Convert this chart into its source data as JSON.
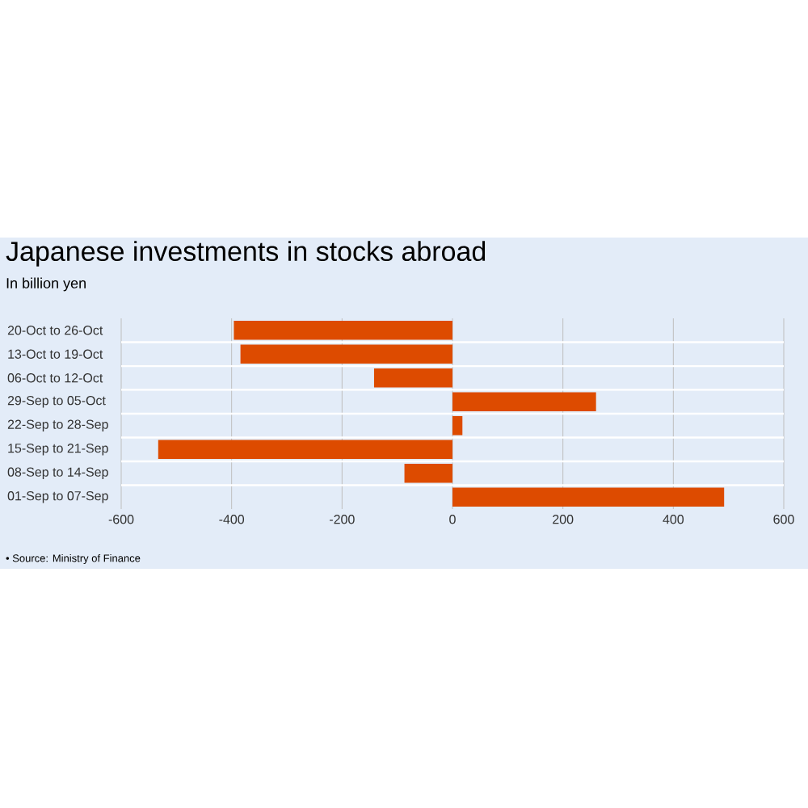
{
  "chart_data": {
    "type": "bar",
    "orientation": "horizontal",
    "title": "Japanese investments in stocks abroad",
    "subtitle": "In billion yen",
    "categories": [
      "20-Oct to 26-Oct",
      "13-Oct to 19-Oct",
      "06-Oct to 12-Oct",
      "29-Sep to 05-Oct",
      "22-Sep to 28-Sep",
      "15-Sep to 21-Sep",
      "08-Sep to 14-Sep",
      "01-Sep to 07-Sep"
    ],
    "values": [
      -396,
      -384,
      -142,
      260,
      18,
      -533,
      -87,
      492
    ],
    "color": "#dd4b00",
    "xlim": [
      -600,
      600
    ],
    "xticks": [
      -600,
      -400,
      -200,
      0,
      200,
      400,
      600
    ],
    "grid": "x",
    "annotations": [
      "• Source: Ministry of Finance"
    ]
  }
}
